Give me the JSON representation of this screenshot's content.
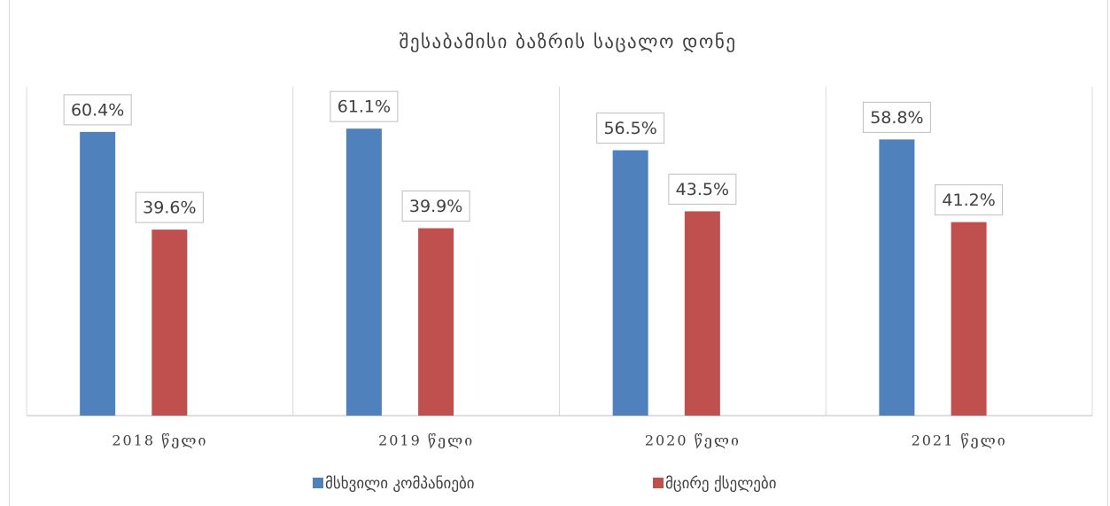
{
  "chart_data": {
    "type": "bar",
    "title": "შესაბამისი ბაზრის საცალო დონე",
    "categories": [
      "2018 წელი",
      "2019 წელი",
      "2020 წელი",
      "2021 წელი"
    ],
    "series": [
      {
        "name": "მსხვილი კომპანიები",
        "color": "#4f81bd",
        "values": [
          60.4,
          61.1,
          56.5,
          58.8
        ],
        "value_labels": [
          "60.4%",
          "61.1%",
          "56.5%",
          "58.8%"
        ]
      },
      {
        "name": "მცირე ქსელები",
        "color": "#c0504d",
        "values": [
          39.6,
          39.9,
          43.5,
          41.2
        ],
        "value_labels": [
          "39.6%",
          "39.9%",
          "43.5%",
          "41.2%"
        ]
      }
    ],
    "ylim": [
      0,
      70
    ],
    "legend": "bottom"
  }
}
